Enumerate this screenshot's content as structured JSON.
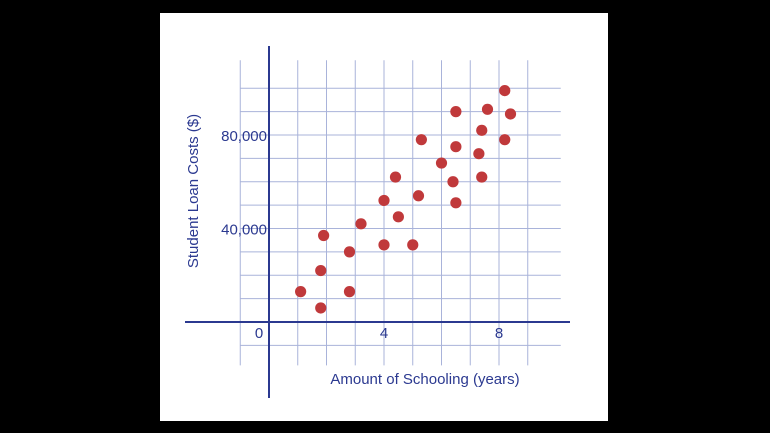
{
  "chart_data": {
    "type": "scatter",
    "xlabel": "Amount of Schooling (years)",
    "ylabel": "Student Loan Costs ($)",
    "xlim": [
      -1.2,
      10.5
    ],
    "ylim": [
      -31000,
      118000
    ],
    "x_ticks": [
      {
        "value": 0,
        "label": "0"
      },
      {
        "value": 4,
        "label": "4"
      },
      {
        "value": 8,
        "label": "8"
      }
    ],
    "y_ticks": [
      {
        "value": 40000,
        "label": "40,000"
      },
      {
        "value": 80000,
        "label": "80,000"
      }
    ],
    "grid": true,
    "points": [
      {
        "x": 1.1,
        "y": 13000
      },
      {
        "x": 1.8,
        "y": 22000
      },
      {
        "x": 1.8,
        "y": 6000
      },
      {
        "x": 1.9,
        "y": 37000
      },
      {
        "x": 2.8,
        "y": 30000
      },
      {
        "x": 2.8,
        "y": 13000
      },
      {
        "x": 3.2,
        "y": 42000
      },
      {
        "x": 4.0,
        "y": 52000
      },
      {
        "x": 4.0,
        "y": 33000
      },
      {
        "x": 4.4,
        "y": 62000
      },
      {
        "x": 4.5,
        "y": 45000
      },
      {
        "x": 5.0,
        "y": 33000
      },
      {
        "x": 5.2,
        "y": 54000
      },
      {
        "x": 5.3,
        "y": 78000
      },
      {
        "x": 6.0,
        "y": 68000
      },
      {
        "x": 6.4,
        "y": 60000
      },
      {
        "x": 6.5,
        "y": 51000
      },
      {
        "x": 6.5,
        "y": 75000
      },
      {
        "x": 6.5,
        "y": 90000
      },
      {
        "x": 7.3,
        "y": 72000
      },
      {
        "x": 7.4,
        "y": 82000
      },
      {
        "x": 7.4,
        "y": 62000
      },
      {
        "x": 7.6,
        "y": 91000
      },
      {
        "x": 8.2,
        "y": 99000
      },
      {
        "x": 8.2,
        "y": 78000
      },
      {
        "x": 8.4,
        "y": 89000
      }
    ]
  },
  "colors": {
    "axis": "#2b3990",
    "grid": "#a9b3da",
    "point": "#c0393b",
    "text": "#2b3990"
  }
}
